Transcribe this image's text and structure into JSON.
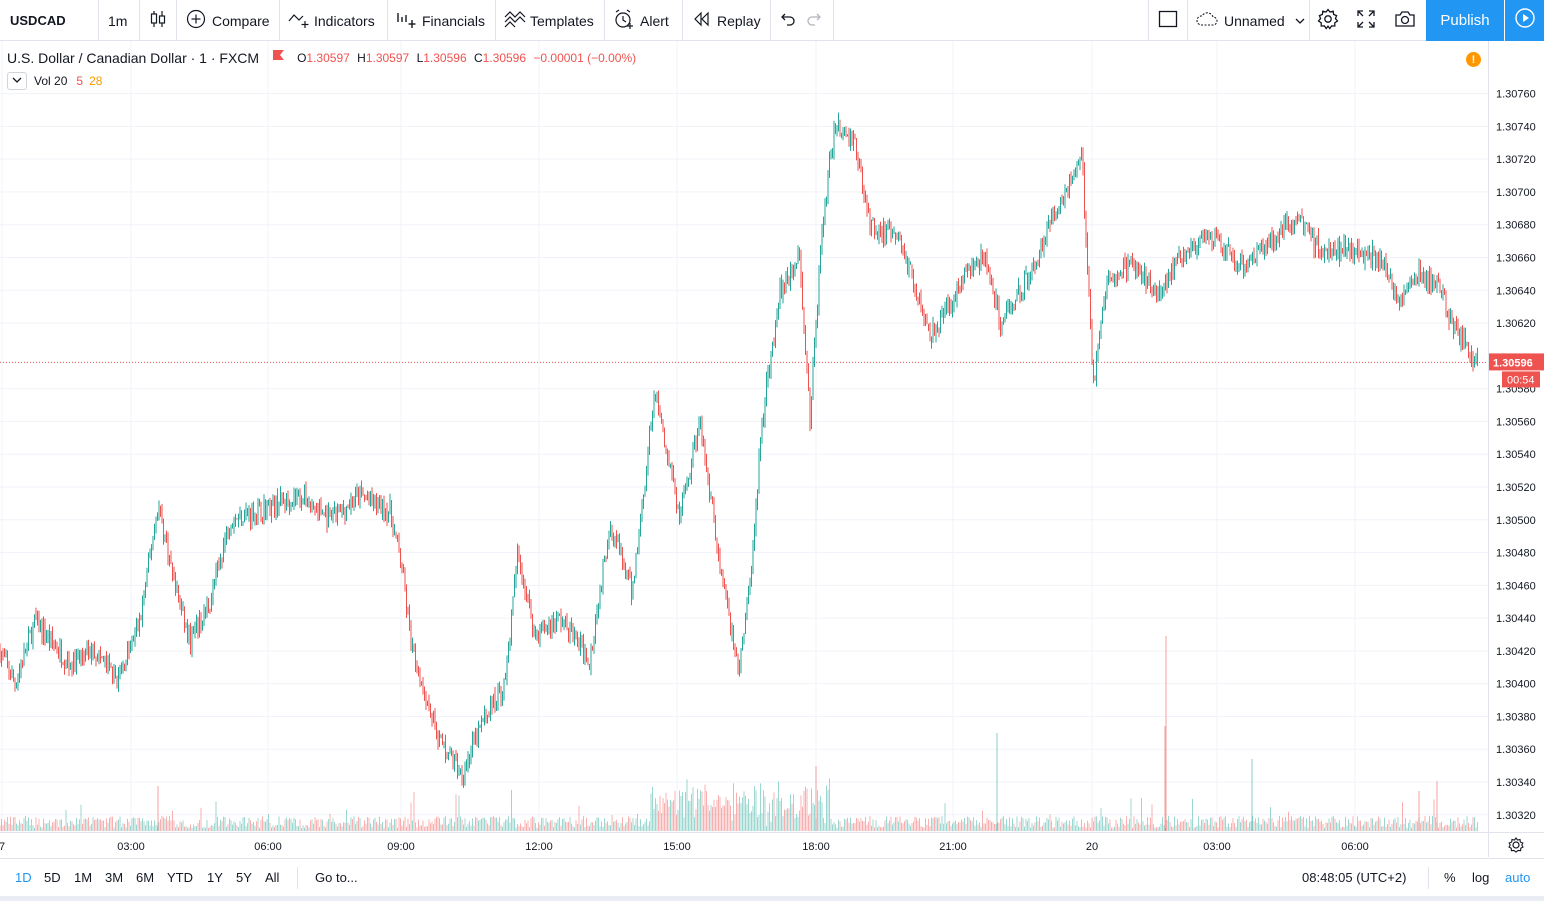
{
  "toolbar": {
    "symbol": "USDCAD",
    "interval": "1m",
    "compare_label": "Compare",
    "indicators_label": "Indicators",
    "financials_label": "Financials",
    "templates_label": "Templates",
    "alert_label": "Alert",
    "replay_label": "Replay",
    "layout_name": "Unnamed",
    "publish_label": "Publish"
  },
  "legend": {
    "title": "U.S. Dollar / Canadian Dollar · 1 · FXCM",
    "o_label": "O",
    "o_value": "1.30597",
    "h_label": "H",
    "h_value": "1.30597",
    "l_label": "L",
    "l_value": "1.30596",
    "c_label": "C",
    "c_value": "1.30596",
    "change": "−0.00001 (−0.00%)",
    "vol_label": "Vol 20",
    "vol_value1": "5",
    "vol_value2": "28",
    "warning_glyph": "!"
  },
  "price_axis": {
    "ticks": [
      "1.30760",
      "1.30740",
      "1.30720",
      "1.30700",
      "1.30680",
      "1.30660",
      "1.30640",
      "1.30620",
      "1.30580",
      "1.30560",
      "1.30540",
      "1.30520",
      "1.30500",
      "1.30480",
      "1.30460",
      "1.30440",
      "1.30420",
      "1.30400",
      "1.30380",
      "1.30360",
      "1.30340",
      "1.30320"
    ],
    "last_price": "1.30596",
    "countdown": "00:54"
  },
  "time_axis": {
    "ticks": [
      "7",
      "03:00",
      "06:00",
      "09:00",
      "12:00",
      "15:00",
      "18:00",
      "21:00",
      "20",
      "03:00",
      "06:00"
    ]
  },
  "bottom": {
    "ranges": [
      "1D",
      "5D",
      "1M",
      "3M",
      "6M",
      "YTD",
      "1Y",
      "5Y",
      "All"
    ],
    "active_range": "1D",
    "goto_label": "Go to...",
    "clock": "08:48:05 (UTC+2)",
    "percent_label": "%",
    "log_label": "log",
    "auto_label": "auto"
  },
  "colors": {
    "up": "#26a69a",
    "down": "#ef5350",
    "accent": "#2196f3",
    "grid": "#f0f3fa",
    "warning": "#ff9800"
  },
  "chart_data": {
    "type": "candlestick",
    "symbol": "USDCAD",
    "interval": "1 minute",
    "price_range": [
      1.30315,
      1.30775
    ],
    "x_ticks": [
      "7",
      "03:00",
      "06:00",
      "09:00",
      "12:00",
      "15:00",
      "18:00",
      "21:00",
      "20",
      "03:00",
      "06:00"
    ],
    "last_price": 1.30596,
    "grid": true,
    "close_path": [
      {
        "t": 0,
        "p": 1.3042
      },
      {
        "t": 15,
        "p": 1.304
      },
      {
        "t": 35,
        "p": 1.30438
      },
      {
        "t": 70,
        "p": 1.30412
      },
      {
        "t": 95,
        "p": 1.3042
      },
      {
        "t": 118,
        "p": 1.30402
      },
      {
        "t": 140,
        "p": 1.30438
      },
      {
        "t": 158,
        "p": 1.3051
      },
      {
        "t": 175,
        "p": 1.3046
      },
      {
        "t": 190,
        "p": 1.30425
      },
      {
        "t": 210,
        "p": 1.3045
      },
      {
        "t": 230,
        "p": 1.305
      },
      {
        "t": 255,
        "p": 1.30505
      },
      {
        "t": 300,
        "p": 1.30515
      },
      {
        "t": 330,
        "p": 1.305
      },
      {
        "t": 360,
        "p": 1.30515
      },
      {
        "t": 390,
        "p": 1.30505
      },
      {
        "t": 402,
        "p": 1.3047
      },
      {
        "t": 412,
        "p": 1.3042
      },
      {
        "t": 440,
        "p": 1.30365
      },
      {
        "t": 462,
        "p": 1.30345
      },
      {
        "t": 485,
        "p": 1.3038
      },
      {
        "t": 505,
        "p": 1.304
      },
      {
        "t": 518,
        "p": 1.3048
      },
      {
        "t": 535,
        "p": 1.3043
      },
      {
        "t": 560,
        "p": 1.3044
      },
      {
        "t": 590,
        "p": 1.30415
      },
      {
        "t": 610,
        "p": 1.305
      },
      {
        "t": 632,
        "p": 1.30455
      },
      {
        "t": 655,
        "p": 1.3058
      },
      {
        "t": 680,
        "p": 1.305
      },
      {
        "t": 700,
        "p": 1.3056
      },
      {
        "t": 718,
        "p": 1.3048
      },
      {
        "t": 738,
        "p": 1.3041
      },
      {
        "t": 750,
        "p": 1.3046
      },
      {
        "t": 762,
        "p": 1.3056
      },
      {
        "t": 780,
        "p": 1.3064
      },
      {
        "t": 800,
        "p": 1.3066
      },
      {
        "t": 810,
        "p": 1.3056
      },
      {
        "t": 822,
        "p": 1.3068
      },
      {
        "t": 835,
        "p": 1.3074
      },
      {
        "t": 855,
        "p": 1.3073
      },
      {
        "t": 870,
        "p": 1.3068
      },
      {
        "t": 900,
        "p": 1.3067
      },
      {
        "t": 930,
        "p": 1.30615
      },
      {
        "t": 945,
        "p": 1.30625
      },
      {
        "t": 965,
        "p": 1.3065
      },
      {
        "t": 985,
        "p": 1.3066
      },
      {
        "t": 1000,
        "p": 1.3062
      },
      {
        "t": 1030,
        "p": 1.3065
      },
      {
        "t": 1060,
        "p": 1.30695
      },
      {
        "t": 1082,
        "p": 1.3072
      },
      {
        "t": 1090,
        "p": 1.3063
      },
      {
        "t": 1093,
        "p": 1.3058
      },
      {
        "t": 1100,
        "p": 1.3062
      },
      {
        "t": 1110,
        "p": 1.30648
      },
      {
        "t": 1130,
        "p": 1.30655
      },
      {
        "t": 1160,
        "p": 1.3064
      },
      {
        "t": 1185,
        "p": 1.30665
      },
      {
        "t": 1215,
        "p": 1.3067
      },
      {
        "t": 1240,
        "p": 1.30655
      },
      {
        "t": 1270,
        "p": 1.3067
      },
      {
        "t": 1296,
        "p": 1.30685
      },
      {
        "t": 1320,
        "p": 1.30665
      },
      {
        "t": 1350,
        "p": 1.30665
      },
      {
        "t": 1380,
        "p": 1.3066
      },
      {
        "t": 1398,
        "p": 1.30635
      },
      {
        "t": 1420,
        "p": 1.3065
      },
      {
        "t": 1440,
        "p": 1.3064
      },
      {
        "t": 1455,
        "p": 1.30615
      },
      {
        "t": 1478,
        "p": 1.30596
      }
    ]
  }
}
